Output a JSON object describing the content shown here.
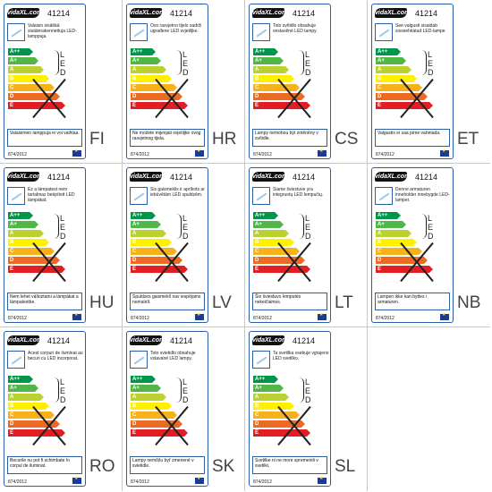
{
  "brand": "vidaXL.com",
  "product_code": "41214",
  "led_letters": [
    "L",
    "E",
    "D"
  ],
  "regulation": "874/2012",
  "classes": [
    "A++",
    "A+",
    "A",
    "B",
    "C",
    "D",
    "E"
  ],
  "class_colors": [
    "#00964a",
    "#50b747",
    "#b9d230",
    "#fff000",
    "#f7b21b",
    "#ed6a23",
    "#e31d24"
  ],
  "labels": [
    {
      "lang": "FI",
      "desc": "Valaisin sisältää sisäänrakennettuja LED-lamppuja.",
      "note": "Valaisimen lamppuja ei voi vaihtaa."
    },
    {
      "lang": "HR",
      "desc": "Ovo rasvjetno tijelo sadrži ugrađene LED svjetiljke.",
      "note": "Ne možete mijenjati svjetiljke ovog rasvjetnog tijela."
    },
    {
      "lang": "CS",
      "desc": "Toto svítidlo obsahuje vestavěné LED lampy.",
      "note": "Lampy nemohou být změněny v svítidle."
    },
    {
      "lang": "ET",
      "desc": "See valgusti sisaldab sisseehitatud LED-lampe",
      "note": "Valgustis ei saa pirne vahetada."
    },
    {
      "lang": "HU",
      "desc": "Ez a lámpatest nem tartalmaz beépített LED lámpákat.",
      "note": "Nem lehet változtatni a lámpákat a lámpatestbe."
    },
    {
      "lang": "LV",
      "desc": "Šis gaismeklis ir aprīkots ar iebūvētām LED spuldzēm.",
      "note": "Spuldzes gaismeklī nav iespējams nomainīt."
    },
    {
      "lang": "LT",
      "desc": "Šiame šviestuve yra integruotų LED lempučių.",
      "note": "Šio šviestuvo lemputės nekeičiamos."
    },
    {
      "lang": "NB",
      "desc": "Denne armaturen inneholder innebygde LED-lamper.",
      "note": "Lampen ikke kan byttes i armaturen."
    },
    {
      "lang": "RO",
      "desc": "Acest corpuri de iluminat au becuri cu LED incorporat.",
      "note": "Becurile nu pot fi schimbate în corpul de iluminat."
    },
    {
      "lang": "SK",
      "desc": "Toto svietidlo obsahuje vstavané LED lampy.",
      "note": "Lampy nemôžu byť zmenené v svietidle."
    },
    {
      "lang": "SL",
      "desc": "Ta svetilka vsebuje vgrajeno LED svetilko.",
      "note": "Svetilke ni ne more spremeniti v svetilki."
    }
  ]
}
